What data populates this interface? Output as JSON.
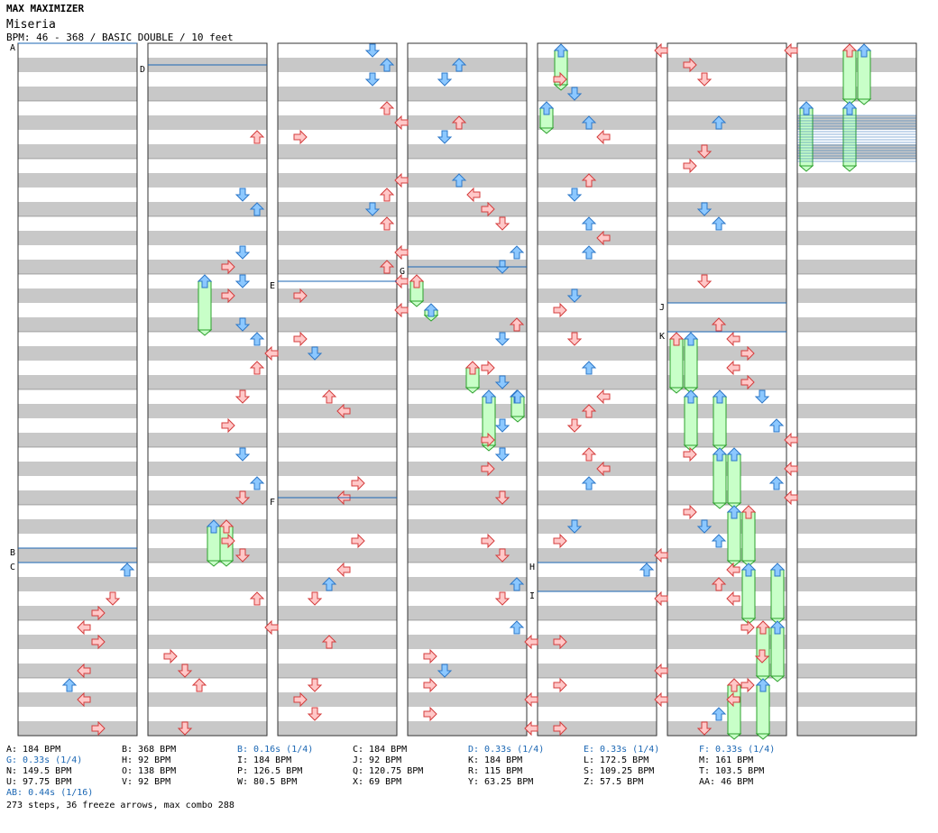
{
  "header": {
    "title": "MAX MAXIMIZER",
    "song": "Miseria",
    "meta": "BPM: 46 - 368 / BASIC DOUBLE / 10 feet"
  },
  "colors": {
    "red_fill": "#ffc8c8",
    "red_stroke": "#d43c3c",
    "blue_fill": "#8cc8ff",
    "blue_stroke": "#2d78c8",
    "green_fill": "#c8ffc8",
    "green_stroke": "#2da02d",
    "band": "#c8c8c8",
    "marker_line": "#1a66b3"
  },
  "markers": [
    {
      "label": "A",
      "col": 0,
      "row": 0
    },
    {
      "label": "B",
      "col": 0,
      "row": 35
    },
    {
      "label": "C",
      "col": 0,
      "row": 36
    },
    {
      "label": "D",
      "col": 1,
      "row": 1.5
    },
    {
      "label": "E",
      "col": 2,
      "row": 16.5
    },
    {
      "label": "F",
      "col": 2,
      "row": 31.5
    },
    {
      "label": "G",
      "col": 3,
      "row": 15.5
    },
    {
      "label": "H",
      "col": 4,
      "row": 36
    },
    {
      "label": "I",
      "col": 4,
      "row": 38
    },
    {
      "label": "J",
      "col": 5,
      "row": 18
    },
    {
      "label": "K",
      "col": 5,
      "row": 20
    }
  ],
  "legend": [
    {
      "text": "A: 184 BPM",
      "blue": false
    },
    {
      "text": "B: 368 BPM",
      "blue": false
    },
    {
      "text": "B: 0.16s (1/4)",
      "blue": true
    },
    {
      "text": "C: 184 BPM",
      "blue": false
    },
    {
      "text": "D: 0.33s (1/4)",
      "blue": true
    },
    {
      "text": "E: 0.33s (1/4)",
      "blue": true
    },
    {
      "text": "F: 0.33s (1/4)",
      "blue": true
    },
    {
      "text": "G: 0.33s (1/4)",
      "blue": true
    },
    {
      "text": "H: 92 BPM",
      "blue": false
    },
    {
      "text": "I: 184 BPM",
      "blue": false
    },
    {
      "text": "J: 92 BPM",
      "blue": false
    },
    {
      "text": "K: 184 BPM",
      "blue": false
    },
    {
      "text": "L: 172.5 BPM",
      "blue": false
    },
    {
      "text": "M: 161 BPM",
      "blue": false
    },
    {
      "text": "N: 149.5 BPM",
      "blue": false
    },
    {
      "text": "O: 138 BPM",
      "blue": false
    },
    {
      "text": "P: 126.5 BPM",
      "blue": false
    },
    {
      "text": "Q: 120.75 BPM",
      "blue": false
    },
    {
      "text": "R: 115 BPM",
      "blue": false
    },
    {
      "text": "S: 109.25 BPM",
      "blue": false
    },
    {
      "text": "T: 103.5 BPM",
      "blue": false
    },
    {
      "text": "U: 97.75 BPM",
      "blue": false
    },
    {
      "text": "V: 92 BPM",
      "blue": false
    },
    {
      "text": "W: 80.5 BPM",
      "blue": false
    },
    {
      "text": "X: 69 BPM",
      "blue": false
    },
    {
      "text": "Y: 63.25 BPM",
      "blue": false
    },
    {
      "text": "Z: 57.5 BPM",
      "blue": false
    },
    {
      "text": "AA: 46 BPM",
      "blue": false
    },
    {
      "text": "AB: 0.44s (1/16)",
      "blue": true
    }
  ],
  "footer": "273 steps, 36 freeze arrows, max combo 288"
}
